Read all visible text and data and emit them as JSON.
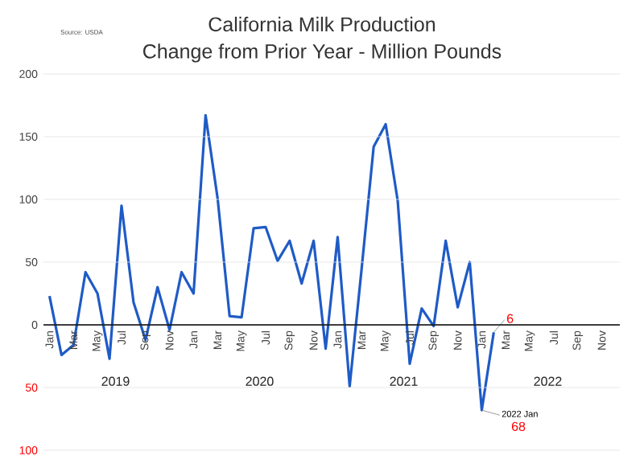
{
  "chart_data": {
    "type": "line",
    "title": "California Milk Production",
    "subtitle": "Change from Prior Year - Million Pounds",
    "categories": [
      "Jan",
      null,
      "Mar",
      null,
      "May",
      null,
      "Jul",
      null,
      "Sep",
      null,
      "Nov",
      null,
      "Jan",
      null,
      "Mar",
      null,
      "May",
      null,
      "Jul",
      null,
      "Sep",
      null,
      "Nov",
      null,
      "Jan",
      null,
      "Mar",
      null,
      "May",
      null,
      "Jul",
      null,
      "Sep",
      null,
      "Nov",
      null,
      "Jan",
      null,
      "Mar",
      null,
      "May",
      null,
      "Jul",
      null,
      "Sep",
      null,
      "Nov",
      null
    ],
    "series": [
      {
        "color": "#1f5bc6",
        "values": [
          23,
          -24,
          -16,
          42,
          25,
          -27,
          95,
          18,
          -12,
          30,
          -4,
          42,
          25,
          167,
          101,
          7,
          6,
          77,
          78,
          51,
          67,
          33,
          67,
          -19,
          70,
          -49,
          45,
          142,
          160,
          99,
          -31,
          13,
          -1,
          67,
          14,
          50,
          -68,
          -6,
          null,
          null,
          null,
          null,
          null,
          null,
          null,
          null,
          null,
          null
        ]
      }
    ],
    "ylim": [
      -100,
      200
    ],
    "yticks": [
      {
        "value": -100,
        "label": "100"
      },
      {
        "value": -50,
        "label": "50"
      },
      0,
      50,
      100,
      150,
      200
    ],
    "grid": "y",
    "annotations": [
      "Source: USDA",
      "2019",
      "2020",
      "2021",
      "2022",
      "6",
      "2022 Jan",
      "68"
    ]
  }
}
